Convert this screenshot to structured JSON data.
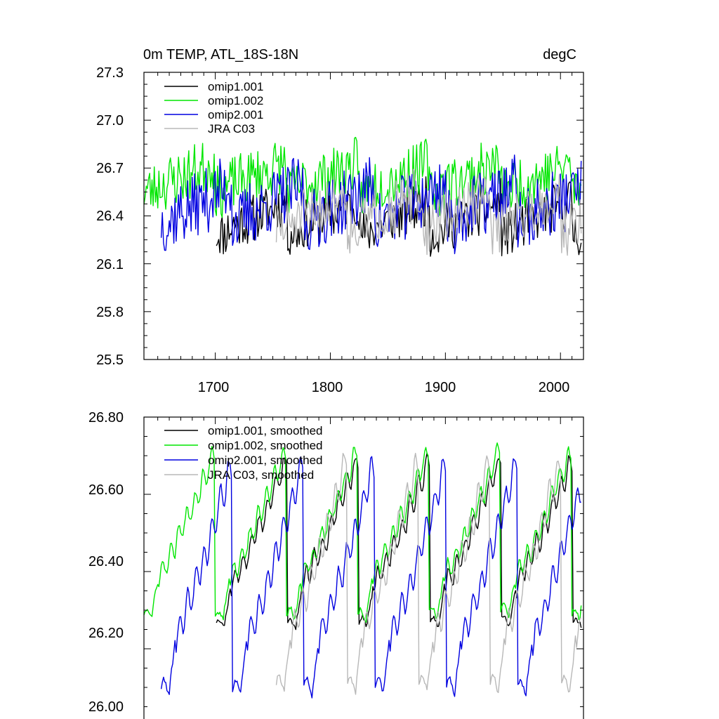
{
  "chart_data": [
    {
      "type": "line",
      "title": "0m TEMP, ATL_18S-18N",
      "units": "degC",
      "xlabel": "",
      "ylabel": "",
      "xlim": [
        1638,
        2020
      ],
      "ylim": [
        25.5,
        27.3
      ],
      "xticks": [
        1700,
        1800,
        1900,
        2000
      ],
      "xtick_labels": [
        "1700",
        "1800",
        "1900",
        "2000"
      ],
      "yticks": [
        25.5,
        25.8,
        26.1,
        26.4,
        26.7,
        27.0,
        27.3
      ],
      "ytick_labels": [
        "25.5",
        "25.8",
        "26.1",
        "26.4",
        "26.7",
        "27.0",
        "27.3"
      ],
      "legend_position": "top-left",
      "series": [
        {
          "name": "omip1.001",
          "color": "#000000",
          "cycle_start": 1701,
          "base": 26.28,
          "amp": 0.22,
          "noise": 0.15,
          "seed": 11
        },
        {
          "name": "omip1.002",
          "color": "#00e600",
          "cycle_start": 1638,
          "base": 26.55,
          "amp": 0.18,
          "noise": 0.17,
          "seed": 23
        },
        {
          "name": "omip2.001",
          "color": "#0000e0",
          "cycle_start": 1653,
          "base": 26.35,
          "amp": 0.25,
          "noise": 0.2,
          "seed": 37
        },
        {
          "name": "JRA C03",
          "color": "#b8b8b8",
          "cycle_start": 1753,
          "base": 26.3,
          "amp": 0.25,
          "noise": 0.16,
          "seed": 51
        }
      ]
    },
    {
      "type": "line",
      "title": "",
      "xlabel": "",
      "ylabel": "",
      "xlim": [
        1638,
        2020
      ],
      "ylim": [
        26.0,
        26.8
      ],
      "yticks": [
        26.0,
        26.2,
        26.4,
        26.6,
        26.8
      ],
      "ytick_labels": [
        "26.00",
        "26.20",
        "26.40",
        "26.60",
        "26.80"
      ],
      "legend_position": "top-left",
      "series": [
        {
          "name": "omip1.001, smoothed",
          "color": "#000000",
          "cycle_start": 1701,
          "base": 26.25,
          "amp": 0.45,
          "noise": 0.025,
          "seed": 12
        },
        {
          "name": "omip1.002, smoothed",
          "color": "#00e600",
          "cycle_start": 1638,
          "base": 26.27,
          "amp": 0.45,
          "noise": 0.025,
          "seed": 24
        },
        {
          "name": "omip2.001, smoothed",
          "color": "#0000e0",
          "cycle_start": 1653,
          "base": 26.07,
          "amp": 0.62,
          "noise": 0.025,
          "seed": 38
        },
        {
          "name": "JRA C03, smoothed",
          "color": "#b8b8b8",
          "cycle_start": 1753,
          "base": 26.08,
          "amp": 0.62,
          "noise": 0.025,
          "seed": 52
        }
      ]
    }
  ]
}
